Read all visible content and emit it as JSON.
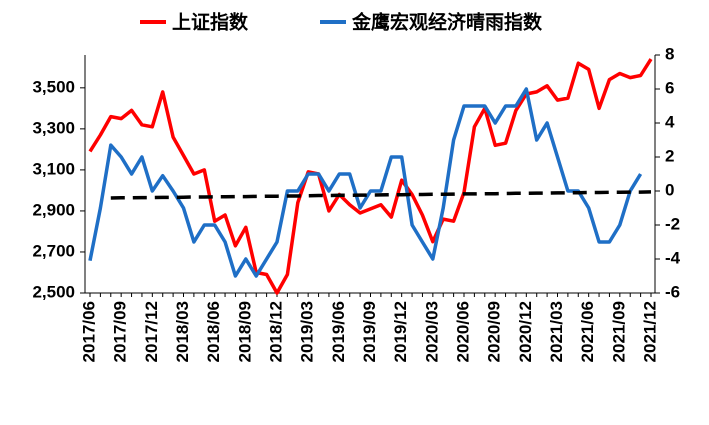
{
  "chart_data": {
    "type": "line",
    "categories": [
      "2017/06",
      null,
      null,
      "2017/09",
      null,
      null,
      "2017/12",
      null,
      null,
      "2018/03",
      null,
      null,
      "2018/06",
      null,
      null,
      "2018/09",
      null,
      null,
      "2018/12",
      null,
      null,
      "2019/03",
      null,
      null,
      "2019/06",
      null,
      null,
      "2019/09",
      null,
      null,
      "2019/12",
      null,
      null,
      "2020/03",
      null,
      null,
      "2020/06",
      null,
      null,
      "2020/09",
      null,
      null,
      "2020/12",
      null,
      null,
      "2021/03",
      null,
      null,
      "2021/06",
      null,
      null,
      "2021/09",
      null,
      null,
      "2021/12"
    ],
    "series": [
      {
        "name": "上证指数",
        "color": "#ff0000",
        "axis": "y",
        "values": [
          3190,
          3270,
          3360,
          3350,
          3390,
          3320,
          3310,
          3480,
          3260,
          3170,
          3080,
          3100,
          2850,
          2880,
          2730,
          2820,
          2600,
          2590,
          2500,
          2590,
          2940,
          3090,
          3080,
          2900,
          2980,
          2930,
          2890,
          2910,
          2930,
          2870,
          3050,
          2980,
          2880,
          2750,
          2860,
          2850,
          2990,
          3310,
          3400,
          3220,
          3230,
          3390,
          3470,
          3480,
          3510,
          3440,
          3450,
          3620,
          3590,
          3400,
          3540,
          3570,
          3550,
          3560,
          3640
        ]
      },
      {
        "name": "金鹰宏观经济晴雨指数",
        "color": "#1f6fc6",
        "axis": "y2",
        "values": [
          -4.1,
          -1,
          2.7,
          2,
          1,
          2,
          0,
          0.9,
          0,
          -1,
          -3,
          -2,
          -2,
          -3,
          -5,
          -4,
          -5,
          -4,
          -3,
          0,
          0,
          1,
          1,
          0,
          1,
          1,
          -1,
          0,
          0,
          2,
          2,
          -2,
          -3,
          -4,
          -1,
          3,
          5,
          5,
          5,
          4,
          5,
          5,
          6,
          3,
          4,
          2,
          0,
          0,
          -1,
          -3,
          -3,
          -2,
          0,
          1,
          null
        ]
      },
      {
        "color": "#000000",
        "axis": "y",
        "dash": true,
        "values": [
          null,
          null,
          2963,
          2964,
          2964,
          2965,
          2965,
          2966,
          2966,
          2967,
          2968,
          2968,
          2969,
          2969,
          2970,
          2970,
          2971,
          2972,
          2972,
          2973,
          2973,
          2974,
          2975,
          2975,
          2976,
          2976,
          2977,
          2977,
          2978,
          2979,
          2979,
          2980,
          2980,
          2981,
          2981,
          2982,
          2983,
          2983,
          2984,
          2984,
          2985,
          2986,
          2986,
          2987,
          2987,
          2988,
          2988,
          2989,
          2990,
          2990,
          2991,
          2991,
          2992,
          2992,
          2993
        ]
      }
    ],
    "ylim": [
      2500,
      3660
    ],
    "yticks": [
      {
        "value": 2500,
        "label": "2,500"
      },
      {
        "value": 2700,
        "label": "2,700"
      },
      {
        "value": 2900,
        "label": "2,900"
      },
      {
        "value": 3100,
        "label": "3,100"
      },
      {
        "value": 3300,
        "label": "3,300"
      },
      {
        "value": 3500,
        "label": "3,500"
      }
    ],
    "y2lim": [
      -6,
      8
    ],
    "y2ticks": [
      -6,
      -4,
      -2,
      0,
      2,
      4,
      6,
      8
    ],
    "grid": false
  }
}
